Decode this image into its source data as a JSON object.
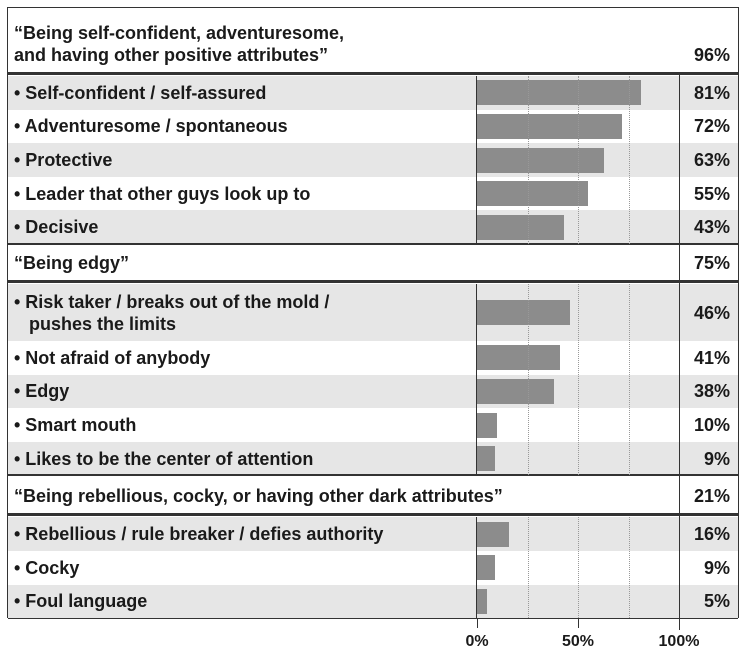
{
  "chart_data": {
    "type": "grouped-bar-table",
    "groups": [
      {
        "label": "“Being self-confident, adventuresome,\nand having other positive attributes”",
        "value": 96,
        "value_label": "96%",
        "items": [
          {
            "label": "• Self-confident / self-assured",
            "value": 81,
            "value_label": "81%"
          },
          {
            "label": "• Adventuresome / spontaneous",
            "value": 72,
            "value_label": "72%"
          },
          {
            "label": "• Protective",
            "value": 63,
            "value_label": "63%"
          },
          {
            "label": "• Leader that other guys look up to",
            "value": 55,
            "value_label": "55%"
          },
          {
            "label": "• Decisive",
            "value": 43,
            "value_label": "43%"
          }
        ]
      },
      {
        "label": "“Being edgy”",
        "value": 75,
        "value_label": "75%",
        "items": [
          {
            "label": "• Risk taker / breaks out of the mold /\n   pushes the limits",
            "value": 46,
            "value_label": "46%"
          },
          {
            "label": "• Not afraid of anybody",
            "value": 41,
            "value_label": "41%"
          },
          {
            "label": "• Edgy",
            "value": 38,
            "value_label": "38%"
          },
          {
            "label": "• Smart mouth",
            "value": 10,
            "value_label": "10%"
          },
          {
            "label": "• Likes to be the center of attention",
            "value": 9,
            "value_label": "9%"
          }
        ]
      },
      {
        "label": "“Being rebellious, cocky, or having other dark attributes”",
        "value": 21,
        "value_label": "21%",
        "items": [
          {
            "label": "• Rebellious / rule breaker / defies authority",
            "value": 16,
            "value_label": "16%"
          },
          {
            "label": "• Cocky",
            "value": 9,
            "value_label": "9%"
          },
          {
            "label": "• Foul language",
            "value": 5,
            "value_label": "5%"
          }
        ]
      }
    ],
    "xlim": [
      0,
      100
    ],
    "xticks": [
      {
        "value": 0,
        "label": "0%"
      },
      {
        "value": 50,
        "label": "50%"
      },
      {
        "value": 100,
        "label": "100%"
      }
    ],
    "grid_lines": [
      25,
      50,
      75
    ],
    "bar_color": "#8c8c8c",
    "stripe_color": "#e6e6e6"
  }
}
